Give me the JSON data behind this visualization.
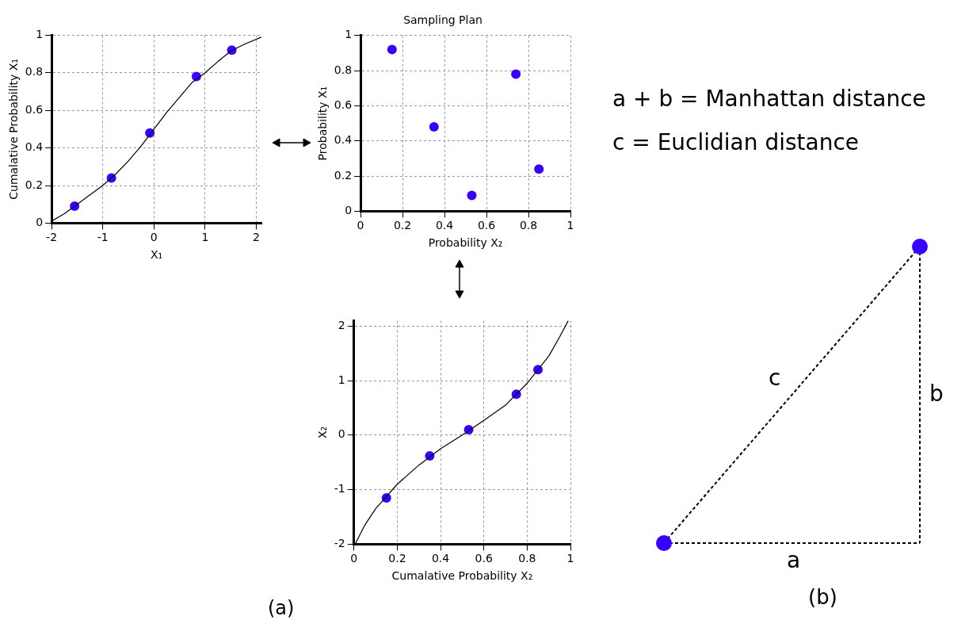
{
  "chart_data": [
    {
      "type": "scatter",
      "xlabel": "X₁",
      "ylabel": "Cumalative Probability X₁",
      "xlim": [
        -2,
        2.1
      ],
      "xticks": [
        -2,
        -1,
        0,
        1,
        2
      ],
      "ylim": [
        0,
        1
      ],
      "yticks": [
        0,
        0.2,
        0.4,
        0.6,
        0.8,
        1
      ],
      "grid": true,
      "series": [
        {
          "type": "line",
          "color": "#000000",
          "marker": "none",
          "x": [
            -2,
            -1.75,
            -1.5,
            -1.25,
            -1,
            -0.75,
            -0.5,
            -0.25,
            0,
            0.25,
            0.5,
            0.75,
            1,
            1.25,
            1.5,
            1.75,
            2.1
          ],
          "values": [
            0.01,
            0.05,
            0.1,
            0.15,
            0.2,
            0.26,
            0.33,
            0.41,
            0.5,
            0.59,
            0.67,
            0.75,
            0.8,
            0.86,
            0.915,
            0.95,
            0.99
          ]
        },
        {
          "type": "scatter",
          "color": "#3a00ff",
          "marker": "circle",
          "x": [
            -1.55,
            -0.83,
            -0.08,
            0.83,
            1.52
          ],
          "values": [
            0.09,
            0.24,
            0.48,
            0.78,
            0.92
          ]
        }
      ]
    },
    {
      "type": "scatter",
      "title": "Sampling Plan",
      "xlabel": "Probability X₂",
      "ylabel": "Probability X₁",
      "xlim": [
        0,
        1
      ],
      "xticks": [
        0,
        0.2,
        0.4,
        0.6,
        0.8,
        1
      ],
      "ylim": [
        0,
        1
      ],
      "yticks": [
        0,
        0.2,
        0.4,
        0.6,
        0.8,
        1
      ],
      "grid": true,
      "series": [
        {
          "type": "scatter",
          "color": "#3a00ff",
          "marker": "circle",
          "x": [
            0.15,
            0.35,
            0.53,
            0.74,
            0.85
          ],
          "values": [
            0.92,
            0.48,
            0.09,
            0.78,
            0.24
          ]
        }
      ]
    },
    {
      "type": "scatter",
      "xlabel": "Cumalative Probability X₂",
      "ylabel": "X₂",
      "xlim": [
        0,
        1
      ],
      "xticks": [
        0,
        0.2,
        0.4,
        0.6,
        0.8,
        1
      ],
      "ylim": [
        -2,
        2.1
      ],
      "yticks": [
        -2,
        -1,
        0,
        1,
        2
      ],
      "grid": true,
      "annotations": [
        "(a)"
      ],
      "series": [
        {
          "type": "line",
          "color": "#000000",
          "marker": "none",
          "x": [
            0.005,
            0.05,
            0.1,
            0.2,
            0.3,
            0.4,
            0.5,
            0.6,
            0.7,
            0.8,
            0.9,
            0.95,
            0.99
          ],
          "values": [
            -2,
            -1.65,
            -1.35,
            -0.9,
            -0.55,
            -0.25,
            0,
            0.27,
            0.55,
            0.95,
            1.45,
            1.8,
            2.1
          ]
        },
        {
          "type": "scatter",
          "color": "#3a00ff",
          "marker": "circle",
          "x": [
            0.15,
            0.35,
            0.53,
            0.75,
            0.85
          ],
          "values": [
            -1.15,
            -0.38,
            0.1,
            0.75,
            1.2
          ]
        }
      ]
    },
    {
      "type": "other",
      "annotations": [
        "a + b = Manhattan distance",
        "c = Euclidian distance",
        "a",
        "b",
        "c",
        "(b)"
      ]
    }
  ]
}
